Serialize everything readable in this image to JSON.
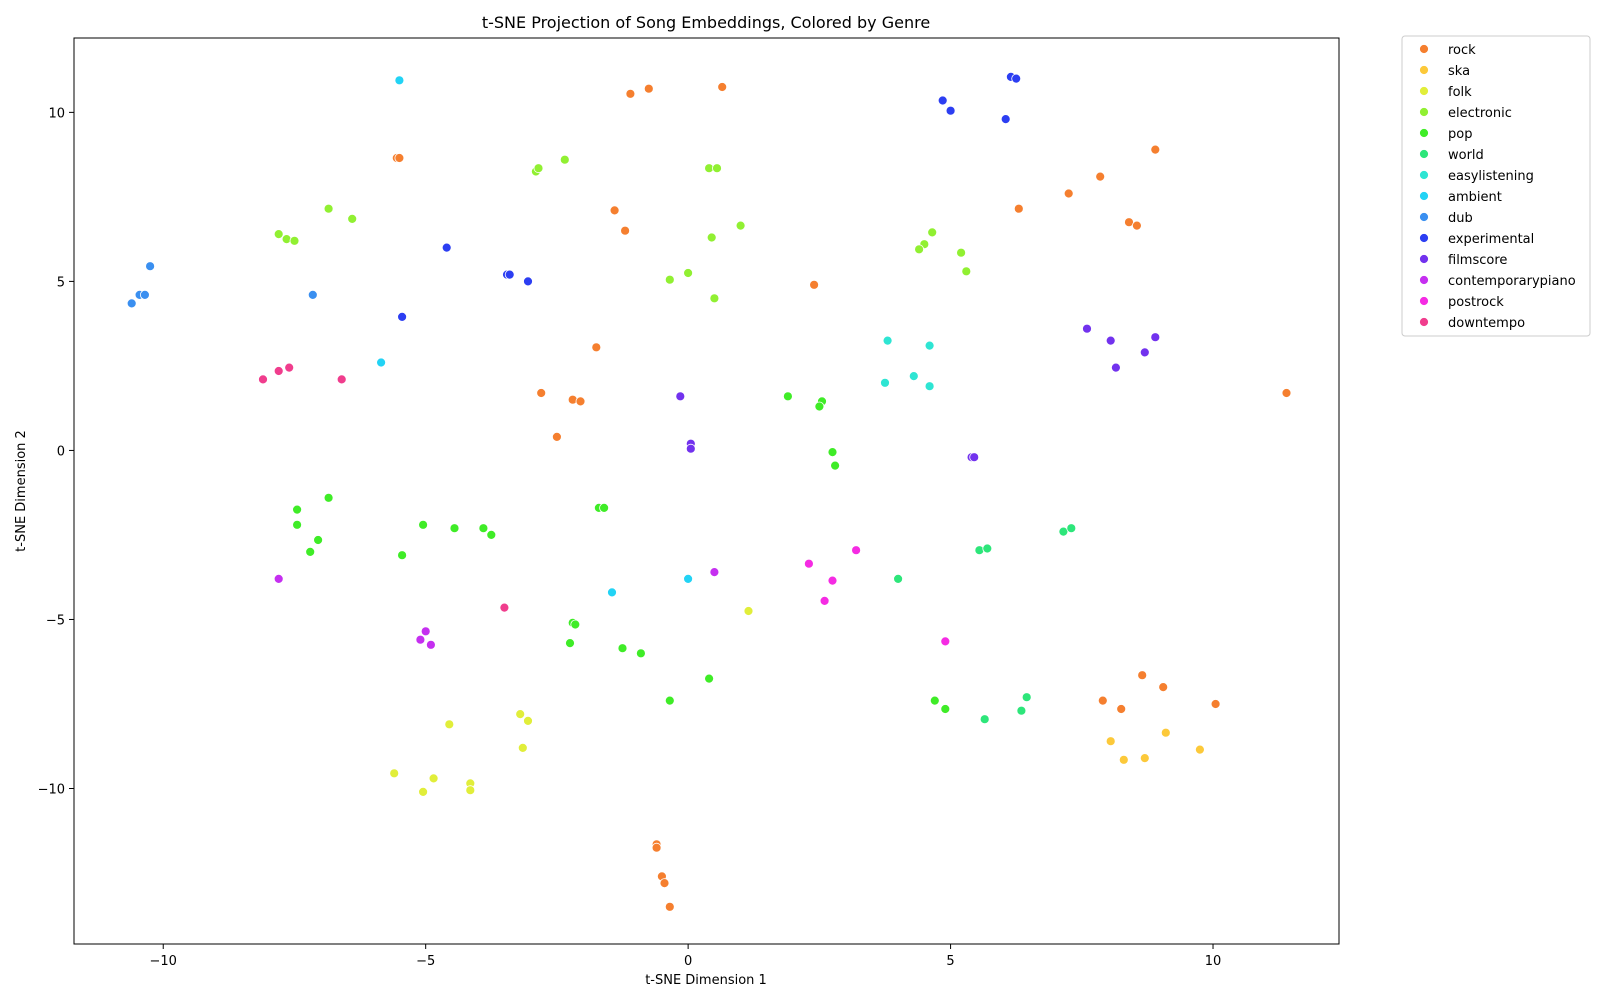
{
  "chart_data": {
    "type": "scatter",
    "title": "t-SNE Projection of Song Embeddings, Colored by Genre",
    "xlabel": "t-SNE Dimension 1",
    "ylabel": "t-SNE Dimension 2",
    "xlim": [
      -11.7,
      12.4
    ],
    "ylim": [
      -14.6,
      12.2
    ],
    "xticks": [
      -10,
      -5,
      0,
      5,
      10
    ],
    "yticks": [
      -10,
      -5,
      0,
      5,
      10
    ],
    "grid": false,
    "legend_position": "outside-top-right",
    "series": [
      {
        "name": "rock",
        "color": "#f57f2f",
        "points": [
          [
            -5.55,
            8.65
          ],
          [
            -5.5,
            8.65
          ],
          [
            -1.1,
            10.55
          ],
          [
            -0.75,
            10.7
          ],
          [
            0.65,
            10.75
          ],
          [
            -1.4,
            7.1
          ],
          [
            -1.2,
            6.5
          ],
          [
            -1.75,
            3.05
          ],
          [
            -2.8,
            1.7
          ],
          [
            -2.2,
            1.5
          ],
          [
            -2.05,
            1.45
          ],
          [
            -2.5,
            0.4
          ],
          [
            2.4,
            4.9
          ],
          [
            6.3,
            7.15
          ],
          [
            7.25,
            7.6
          ],
          [
            7.85,
            8.1
          ],
          [
            8.9,
            8.9
          ],
          [
            8.4,
            6.75
          ],
          [
            8.55,
            6.65
          ],
          [
            11.4,
            1.7
          ],
          [
            8.65,
            -6.65
          ],
          [
            9.05,
            -7.0
          ],
          [
            7.9,
            -7.4
          ],
          [
            8.25,
            -7.65
          ],
          [
            10.05,
            -7.5
          ],
          [
            -0.6,
            -11.65
          ],
          [
            -0.6,
            -11.75
          ],
          [
            -0.5,
            -12.6
          ],
          [
            -0.45,
            -12.8
          ],
          [
            -0.35,
            -13.5
          ]
        ]
      },
      {
        "name": "ska",
        "color": "#fcc93a",
        "points": [
          [
            8.05,
            -8.6
          ],
          [
            8.3,
            -9.15
          ],
          [
            8.7,
            -9.1
          ],
          [
            9.1,
            -8.35
          ],
          [
            9.75,
            -8.85
          ]
        ]
      },
      {
        "name": "folk",
        "color": "#e1ee3a",
        "points": [
          [
            1.15,
            -4.75
          ],
          [
            -4.55,
            -8.1
          ],
          [
            -3.2,
            -7.8
          ],
          [
            -3.05,
            -8.0
          ],
          [
            -3.15,
            -8.8
          ],
          [
            -5.6,
            -9.55
          ],
          [
            -4.85,
            -9.7
          ],
          [
            -5.05,
            -10.1
          ],
          [
            -4.15,
            -9.85
          ],
          [
            -4.15,
            -10.05
          ]
        ]
      },
      {
        "name": "electronic",
        "color": "#91f032",
        "points": [
          [
            -7.8,
            6.4
          ],
          [
            -7.65,
            6.25
          ],
          [
            -7.5,
            6.2
          ],
          [
            -6.85,
            7.15
          ],
          [
            -6.4,
            6.85
          ],
          [
            -2.9,
            8.25
          ],
          [
            -2.85,
            8.35
          ],
          [
            -2.35,
            8.6
          ],
          [
            0.4,
            8.35
          ],
          [
            0.55,
            8.35
          ],
          [
            1.0,
            6.65
          ],
          [
            0.45,
            6.3
          ],
          [
            -0.35,
            5.05
          ],
          [
            0.0,
            5.25
          ],
          [
            0.5,
            4.5
          ],
          [
            4.65,
            6.45
          ],
          [
            4.5,
            6.1
          ],
          [
            4.4,
            5.95
          ],
          [
            5.2,
            5.85
          ],
          [
            5.3,
            5.3
          ]
        ]
      },
      {
        "name": "pop",
        "color": "#3fec27",
        "points": [
          [
            -7.45,
            -1.75
          ],
          [
            -7.45,
            -2.2
          ],
          [
            -6.85,
            -1.4
          ],
          [
            -7.05,
            -2.65
          ],
          [
            -7.2,
            -3.0
          ],
          [
            -5.05,
            -2.2
          ],
          [
            -5.45,
            -3.1
          ],
          [
            -4.45,
            -2.3
          ],
          [
            -3.9,
            -2.3
          ],
          [
            -3.75,
            -2.5
          ],
          [
            -1.7,
            -1.7
          ],
          [
            -1.6,
            -1.7
          ],
          [
            -2.2,
            -5.1
          ],
          [
            -2.15,
            -5.15
          ],
          [
            -2.25,
            -5.7
          ],
          [
            -1.25,
            -5.85
          ],
          [
            -0.9,
            -6.0
          ],
          [
            -0.35,
            -7.4
          ],
          [
            0.4,
            -6.75
          ],
          [
            1.9,
            1.6
          ],
          [
            2.55,
            1.45
          ],
          [
            2.5,
            1.3
          ],
          [
            2.75,
            -0.05
          ],
          [
            2.8,
            -0.45
          ],
          [
            4.7,
            -7.4
          ],
          [
            4.9,
            -7.65
          ]
        ]
      },
      {
        "name": "world",
        "color": "#2de67a",
        "points": [
          [
            4.0,
            -3.8
          ],
          [
            5.55,
            -2.95
          ],
          [
            5.7,
            -2.9
          ],
          [
            7.15,
            -2.4
          ],
          [
            7.3,
            -2.3
          ],
          [
            5.65,
            -7.95
          ],
          [
            6.35,
            -7.7
          ],
          [
            6.45,
            -7.3
          ]
        ]
      },
      {
        "name": "easylistening",
        "color": "#2ee5d3",
        "points": [
          [
            3.8,
            3.25
          ],
          [
            4.6,
            3.1
          ],
          [
            4.3,
            2.2
          ],
          [
            3.75,
            2.0
          ],
          [
            4.6,
            1.9
          ]
        ]
      },
      {
        "name": "ambient",
        "color": "#22d3f5",
        "points": [
          [
            -5.5,
            10.95
          ],
          [
            -5.85,
            2.6
          ],
          [
            -1.45,
            -4.2
          ],
          [
            0.0,
            -3.8
          ]
        ]
      },
      {
        "name": "dub",
        "color": "#3a8ff0",
        "points": [
          [
            -10.25,
            5.45
          ],
          [
            -10.45,
            4.6
          ],
          [
            -10.35,
            4.6
          ],
          [
            -10.6,
            4.35
          ],
          [
            -7.15,
            4.6
          ]
        ]
      },
      {
        "name": "experimental",
        "color": "#2c3ef2",
        "points": [
          [
            6.15,
            11.05
          ],
          [
            6.25,
            11.0
          ],
          [
            4.85,
            10.35
          ],
          [
            5.0,
            10.05
          ],
          [
            6.05,
            9.8
          ],
          [
            -4.6,
            6.0
          ],
          [
            -3.45,
            5.2
          ],
          [
            -3.4,
            5.2
          ],
          [
            -3.05,
            5.0
          ],
          [
            -5.45,
            3.95
          ]
        ]
      },
      {
        "name": "filmscore",
        "color": "#7232ee",
        "points": [
          [
            -0.15,
            1.6
          ],
          [
            0.05,
            0.2
          ],
          [
            0.05,
            0.05
          ],
          [
            5.4,
            -0.2
          ],
          [
            5.45,
            -0.2
          ],
          [
            7.6,
            3.6
          ],
          [
            8.05,
            3.25
          ],
          [
            8.9,
            3.35
          ],
          [
            8.15,
            2.45
          ],
          [
            8.7,
            2.9
          ]
        ]
      },
      {
        "name": "contemporarypiano",
        "color": "#c52ff0",
        "points": [
          [
            -7.8,
            -3.8
          ],
          [
            0.5,
            -3.6
          ],
          [
            -5.0,
            -5.35
          ],
          [
            -5.1,
            -5.6
          ],
          [
            -4.9,
            -5.75
          ]
        ]
      },
      {
        "name": "postrock",
        "color": "#f52be3",
        "points": [
          [
            3.2,
            -2.95
          ],
          [
            2.3,
            -3.35
          ],
          [
            2.75,
            -3.85
          ],
          [
            2.6,
            -4.45
          ],
          [
            4.9,
            -5.65
          ]
        ]
      },
      {
        "name": "downtempo",
        "color": "#f03d8d",
        "points": [
          [
            -8.1,
            2.1
          ],
          [
            -7.8,
            2.35
          ],
          [
            -7.6,
            2.45
          ],
          [
            -6.6,
            2.1
          ],
          [
            -3.5,
            -4.65
          ]
        ]
      }
    ]
  }
}
